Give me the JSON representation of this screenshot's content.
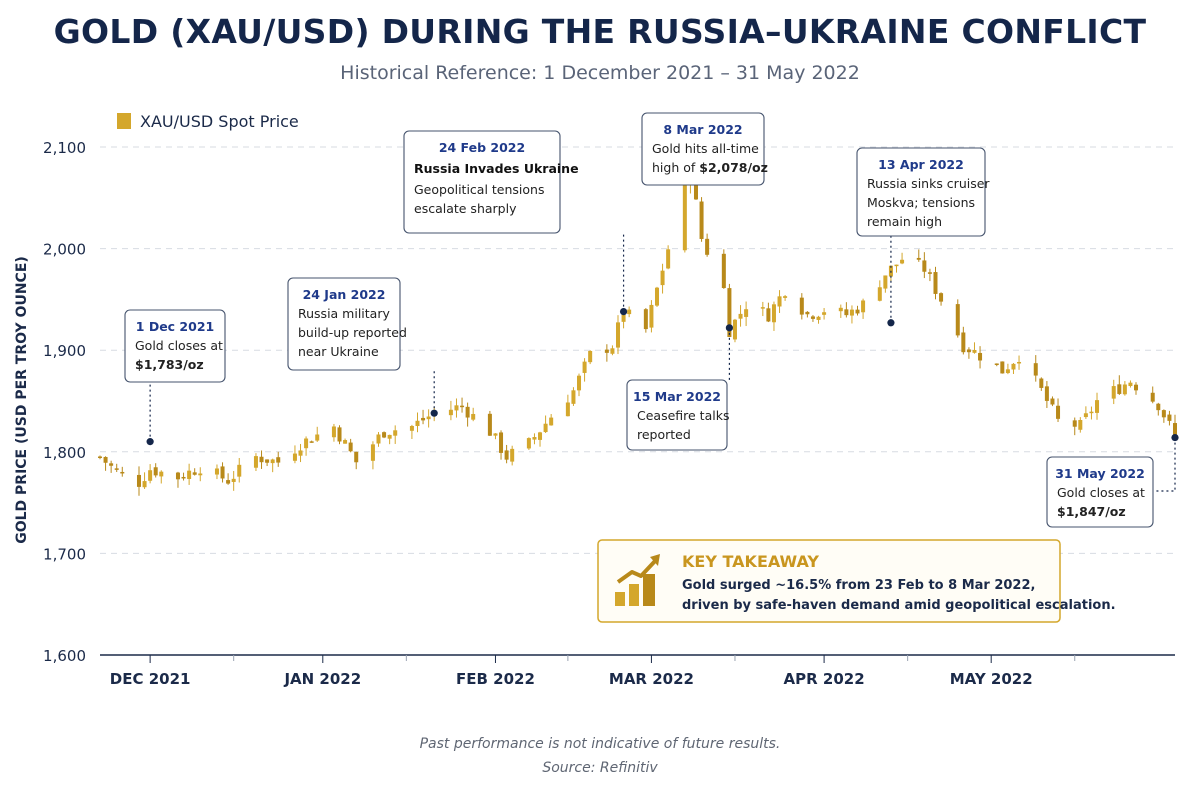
{
  "chart_data": {
    "type": "candlestick",
    "title": "GOLD (XAU/USD) DURING THE RUSSIA–UKRAINE CONFLICT",
    "subtitle": "Historical Reference: 1 December 2021 – 31 May 2022",
    "ylabel": "GOLD PRICE (USD PER TROY OUNCE)",
    "xlabel": "",
    "ylim": [
      1600,
      2100
    ],
    "yticks": [
      1600,
      1700,
      1800,
      1900,
      2000,
      2100
    ],
    "ytick_labels": [
      "1,600",
      "1,700",
      "1,800",
      "1,900",
      "2,000",
      "2,100"
    ],
    "x_range": [
      "2021-11-22",
      "2022-06-03"
    ],
    "xticks": [
      {
        "date": "2021-12-01",
        "label": "DEC 2021"
      },
      {
        "date": "2022-01-01",
        "label": "JAN 2022"
      },
      {
        "date": "2022-02-01",
        "label": "FEB 2022"
      },
      {
        "date": "2022-03-01",
        "label": "MAR 2022"
      },
      {
        "date": "2022-04-01",
        "label": "APR 2022"
      },
      {
        "date": "2022-05-01",
        "label": "MAY 2022"
      }
    ],
    "grid": true,
    "legend": {
      "position": "top-left",
      "label": "XAU/USD Spot Price"
    },
    "colors": {
      "candle": "#d4a72c",
      "candle_dark": "#b8891a",
      "grid": "#d7dbe2",
      "navy": "#14264a"
    },
    "series": [
      {
        "name": "XAU/USD Spot Price",
        "close": [
          [
            "2021-11-22",
            1795
          ],
          [
            "2021-11-25",
            1780
          ],
          [
            "2021-11-29",
            1770
          ],
          [
            "2021-12-01",
            1783
          ],
          [
            "2021-12-06",
            1775
          ],
          [
            "2021-12-10",
            1785
          ],
          [
            "2021-12-15",
            1772
          ],
          [
            "2021-12-20",
            1795
          ],
          [
            "2021-12-24",
            1790
          ],
          [
            "2021-12-28",
            1808
          ],
          [
            "2022-01-03",
            1825
          ],
          [
            "2022-01-07",
            1790
          ],
          [
            "2022-01-12",
            1820
          ],
          [
            "2022-01-17",
            1825
          ],
          [
            "2022-01-21",
            1838
          ],
          [
            "2022-01-26",
            1845
          ],
          [
            "2022-01-31",
            1820
          ],
          [
            "2022-02-03",
            1795
          ],
          [
            "2022-02-07",
            1808
          ],
          [
            "2022-02-11",
            1835
          ],
          [
            "2022-02-15",
            1860
          ],
          [
            "2022-02-18",
            1895
          ],
          [
            "2022-02-22",
            1905
          ],
          [
            "2022-02-24",
            1938
          ],
          [
            "2022-02-28",
            1920
          ],
          [
            "2022-03-02",
            1960
          ],
          [
            "2022-03-04",
            2000
          ],
          [
            "2022-03-08",
            2078
          ],
          [
            "2022-03-10",
            2010
          ],
          [
            "2022-03-14",
            1960
          ],
          [
            "2022-03-15",
            1920
          ],
          [
            "2022-03-18",
            1945
          ],
          [
            "2022-03-22",
            1935
          ],
          [
            "2022-03-25",
            1960
          ],
          [
            "2022-03-29",
            1935
          ],
          [
            "2022-04-01",
            1940
          ],
          [
            "2022-04-05",
            1935
          ],
          [
            "2022-04-08",
            1945
          ],
          [
            "2022-04-12",
            1975
          ],
          [
            "2022-04-15",
            1990
          ],
          [
            "2022-04-19",
            1980
          ],
          [
            "2022-04-22",
            1950
          ],
          [
            "2022-04-26",
            1905
          ],
          [
            "2022-04-29",
            1895
          ],
          [
            "2022-05-03",
            1880
          ],
          [
            "2022-05-06",
            1895
          ],
          [
            "2022-05-10",
            1860
          ],
          [
            "2022-05-13",
            1830
          ],
          [
            "2022-05-17",
            1825
          ],
          [
            "2022-05-20",
            1850
          ],
          [
            "2022-05-23",
            1860
          ],
          [
            "2022-05-26",
            1870
          ],
          [
            "2022-05-31",
            1847
          ],
          [
            "2022-06-03",
            1815
          ]
        ]
      }
    ],
    "annotations": [
      {
        "date": "1 Dec 2021",
        "lines": [
          "Gold closes at",
          "$1,783/oz"
        ],
        "bold_last": true
      },
      {
        "date": "24 Jan 2022",
        "lines": [
          "Russia military",
          "build-up reported",
          "near Ukraine"
        ]
      },
      {
        "date": "24 Feb 2022",
        "headline": "Russia Invades Ukraine",
        "lines": [
          "Geopolitical tensions",
          "escalate sharply"
        ]
      },
      {
        "date": "8 Mar 2022",
        "lines": [
          "Gold hits all-time",
          "high of $2,078/oz"
        ],
        "bold_value": "$2,078/oz"
      },
      {
        "date": "15 Mar 2022",
        "lines": [
          "Ceasefire talks",
          "reported"
        ]
      },
      {
        "date": "13 Apr 2022",
        "lines": [
          "Russia sinks cruiser",
          "Moskva; tensions",
          "remain high"
        ]
      },
      {
        "date": "31 May 2022",
        "lines": [
          "Gold closes at",
          "$1,847/oz"
        ],
        "bold_last": true
      }
    ],
    "takeaway": {
      "heading": "KEY TAKEAWAY",
      "line1": "Gold surged ~16.5% from 23 Feb to 8 Mar 2022,",
      "line2": "driven by safe-haven demand amid geopolitical escalation."
    }
  },
  "footer": {
    "note": "Past performance is not indicative of future results.",
    "source": "Source: Refinitiv"
  }
}
